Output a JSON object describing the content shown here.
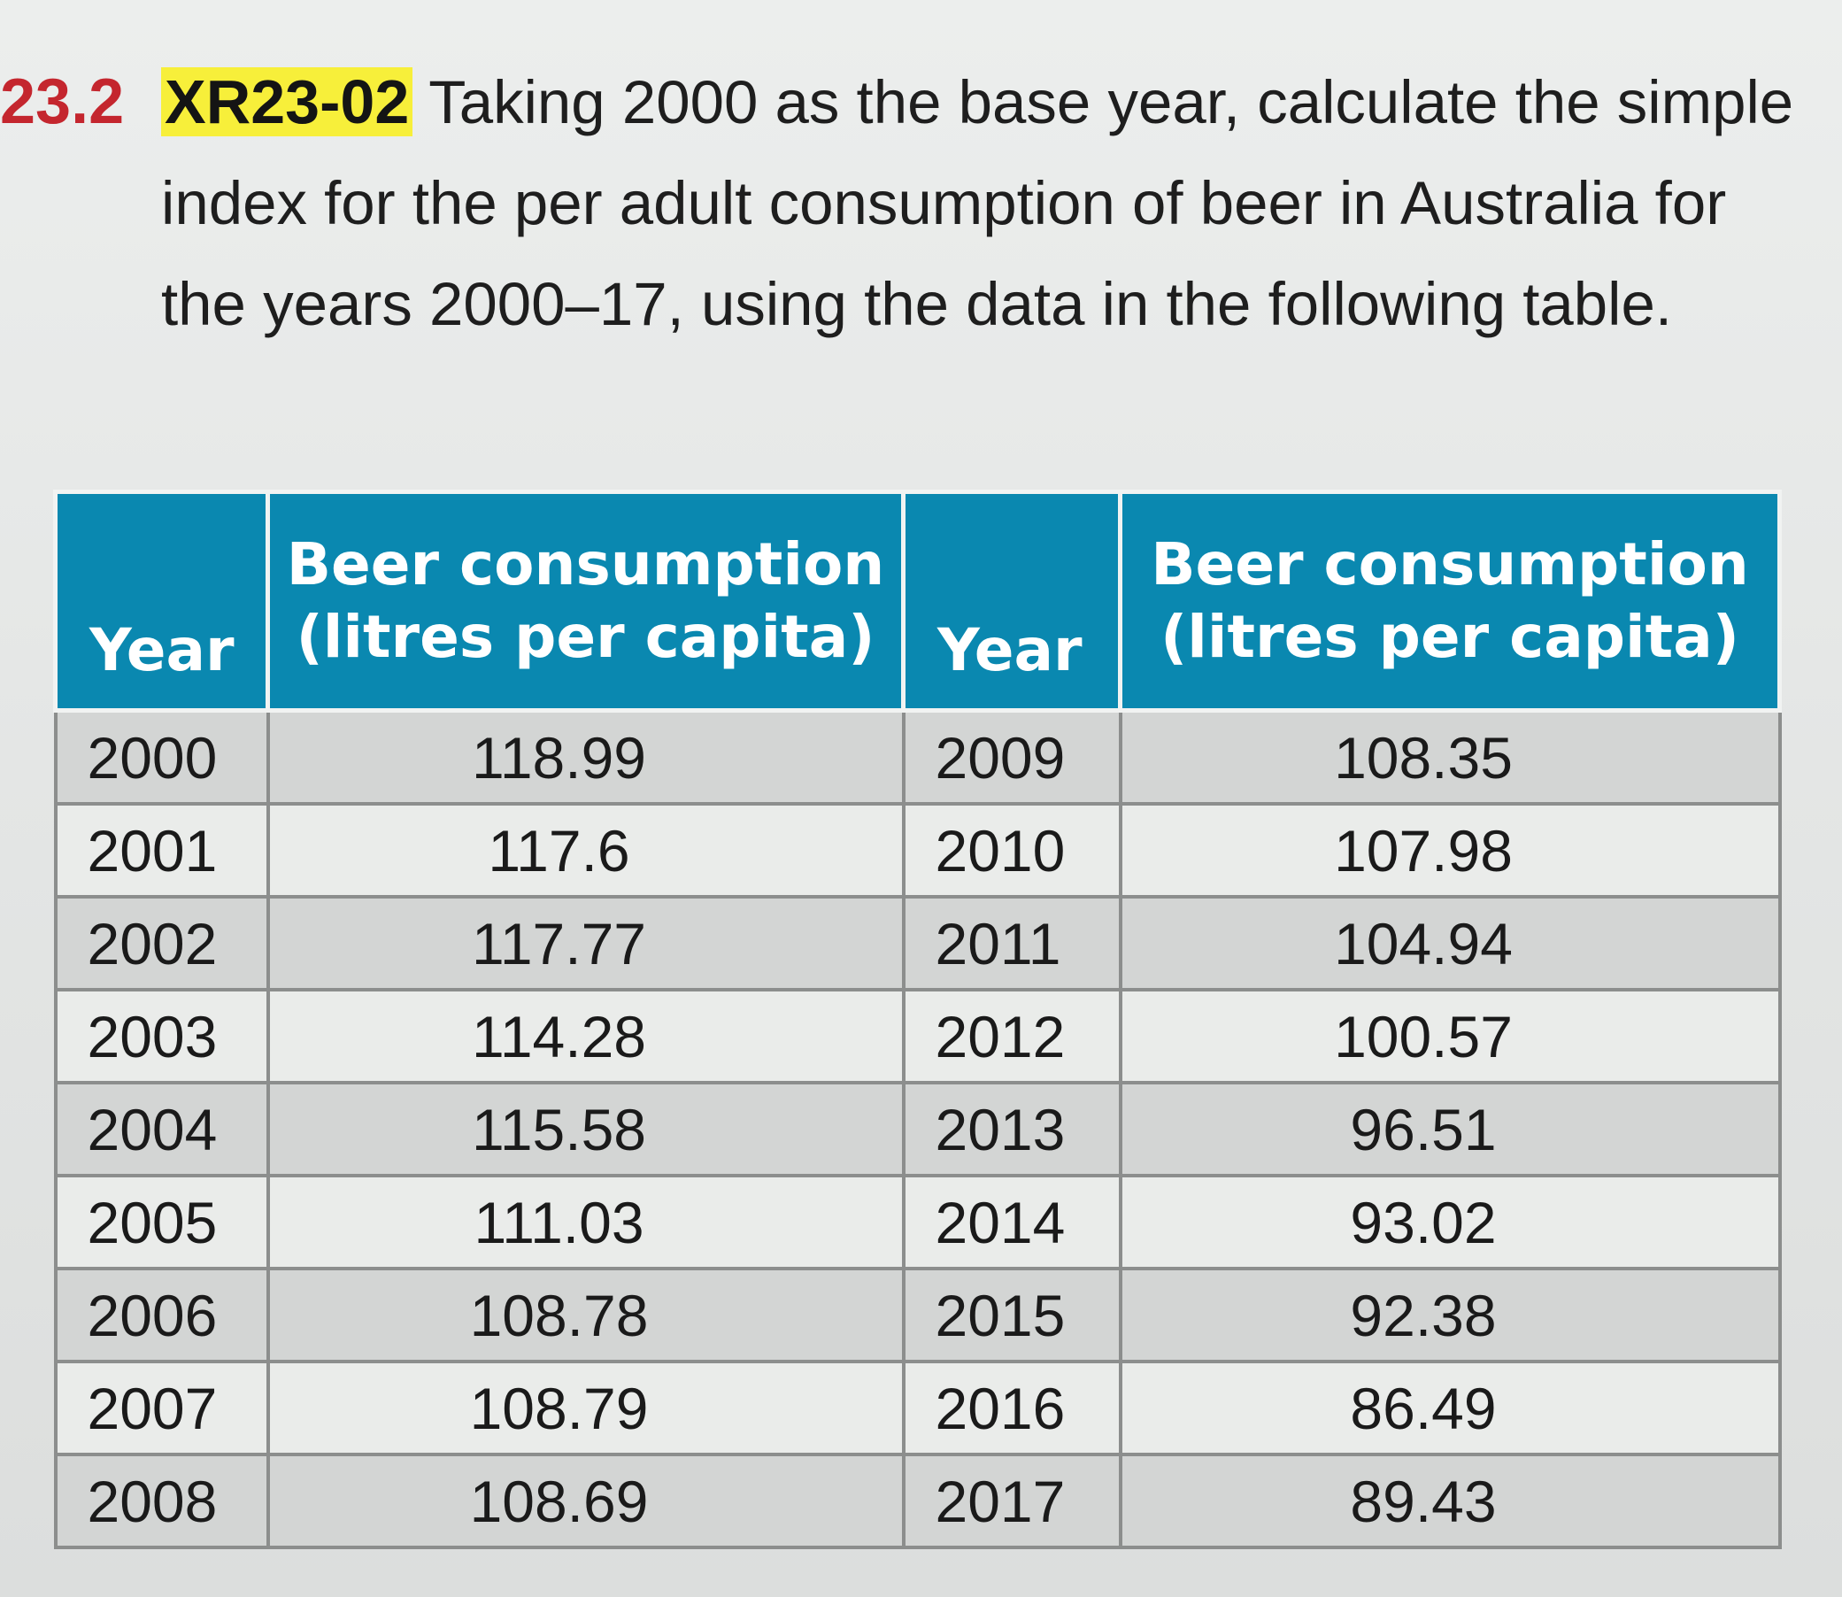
{
  "exercise": {
    "number": "23.2",
    "code": "XR23-02",
    "text": "Taking 2000 as the base year, calculate the simple index for the per adult consumption of beer in Australia for the years 2000–17, using the data in the following table."
  },
  "table": {
    "headers": {
      "year": "Year",
      "consumption_line1": "Beer consumption",
      "consumption_line2": "(litres per capita)"
    },
    "rows": [
      {
        "year_a": "2000",
        "value_a": "118.99",
        "year_b": "2009",
        "value_b": "108.35"
      },
      {
        "year_a": "2001",
        "value_a": "117.6",
        "year_b": "2010",
        "value_b": "107.98"
      },
      {
        "year_a": "2002",
        "value_a": "117.77",
        "year_b": "2011",
        "value_b": "104.94"
      },
      {
        "year_a": "2003",
        "value_a": "114.28",
        "year_b": "2012",
        "value_b": "100.57"
      },
      {
        "year_a": "2004",
        "value_a": "115.58",
        "year_b": "2013",
        "value_b": "96.51"
      },
      {
        "year_a": "2005",
        "value_a": "111.03",
        "year_b": "2014",
        "value_b": "93.02"
      },
      {
        "year_a": "2006",
        "value_a": "108.78",
        "year_b": "2015",
        "value_b": "92.38"
      },
      {
        "year_a": "2007",
        "value_a": "108.79",
        "year_b": "2016",
        "value_b": "86.49"
      },
      {
        "year_a": "2008",
        "value_a": "108.69",
        "year_b": "2017",
        "value_b": "89.43"
      }
    ]
  },
  "colors": {
    "header_bg": "#0a88b0",
    "exercise_number": "#c4262e",
    "code_highlight": "#f7ef3a"
  }
}
